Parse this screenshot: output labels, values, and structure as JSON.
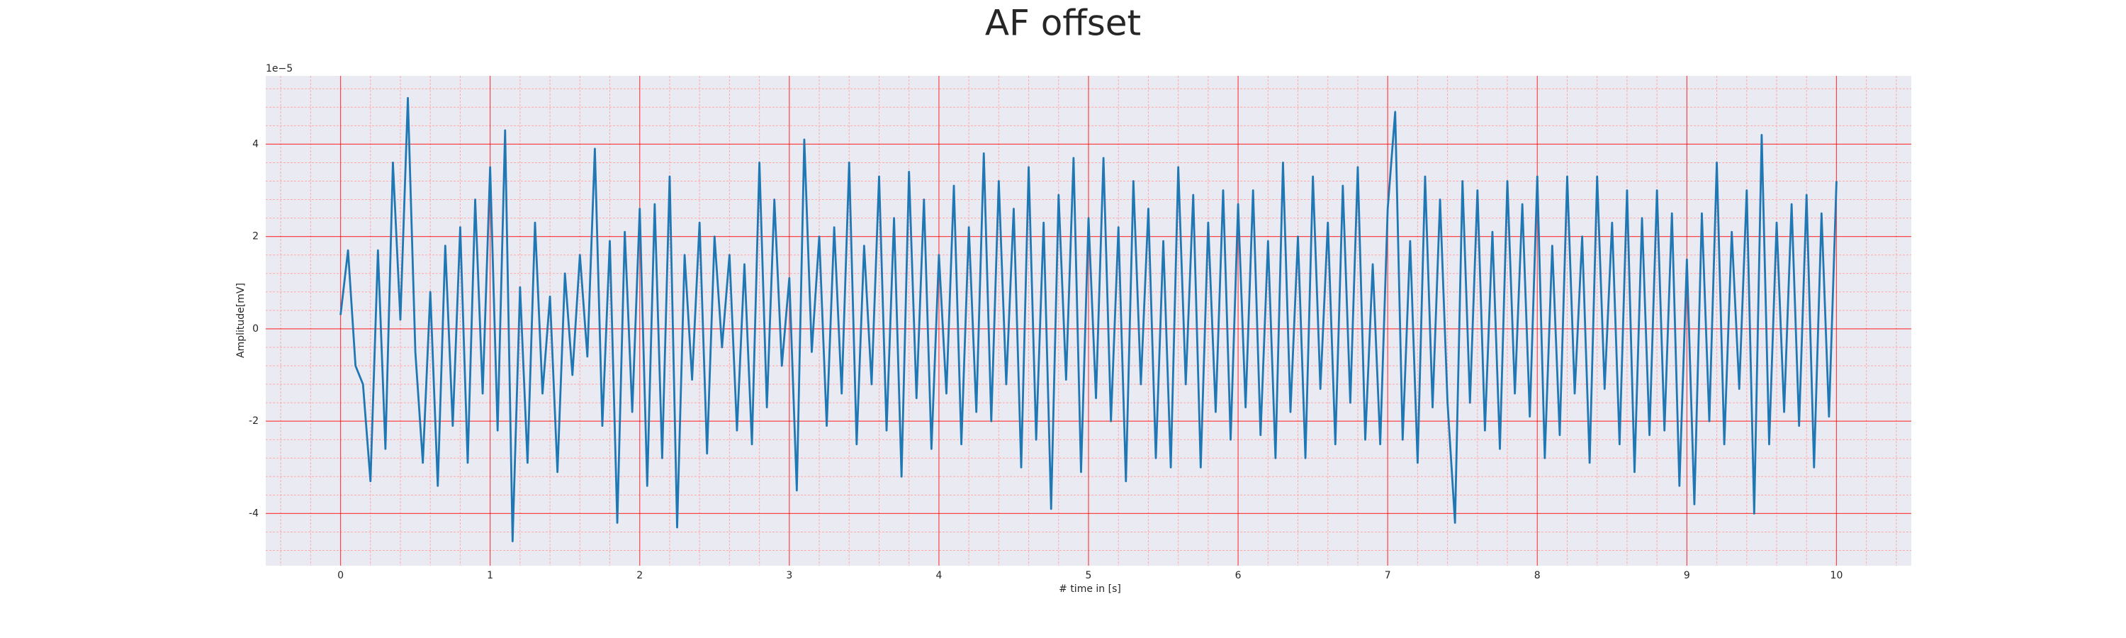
{
  "chart_data": {
    "type": "line",
    "title": "AF offset",
    "xlabel": "# time in [s]",
    "ylabel": "Amplitude[mV]",
    "y_offset_label": "1e−5",
    "xlim": [
      -0.5,
      10.5
    ],
    "ylim": [
      -5.13,
      5.48
    ],
    "xticks": [
      0,
      1,
      2,
      3,
      4,
      5,
      6,
      7,
      8,
      9,
      10
    ],
    "yticks": [
      -4,
      -2,
      0,
      2,
      4
    ],
    "grid": true,
    "grid_color": "#ff0000",
    "minor_grid": true,
    "minor_grid_color": "#ffaaaa",
    "minor_per_major": 5,
    "background": "#eaeaf2",
    "x": [
      0,
      0.05,
      0.1,
      0.15,
      0.2,
      0.25,
      0.3,
      0.35,
      0.4,
      0.45,
      0.5,
      0.55,
      0.6,
      0.65,
      0.7,
      0.75,
      0.8,
      0.85,
      0.9,
      0.95,
      1,
      1.05,
      1.1,
      1.15,
      1.2,
      1.25,
      1.3,
      1.35,
      1.4,
      1.45,
      1.5,
      1.55,
      1.6,
      1.65,
      1.7,
      1.75,
      1.8,
      1.85,
      1.9,
      1.95,
      2,
      2.05,
      2.1,
      2.15,
      2.2,
      2.25,
      2.3,
      2.35,
      2.4,
      2.45,
      2.5,
      2.55,
      2.6,
      2.65,
      2.7,
      2.75,
      2.8,
      2.85,
      2.9,
      2.95,
      3,
      3.05,
      3.1,
      3.15,
      3.2,
      3.25,
      3.3,
      3.35,
      3.4,
      3.45,
      3.5,
      3.55,
      3.6,
      3.65,
      3.7,
      3.75,
      3.8,
      3.85,
      3.9,
      3.95,
      4,
      4.05,
      4.1,
      4.15,
      4.2,
      4.25,
      4.3,
      4.35,
      4.4,
      4.45,
      4.5,
      4.55,
      4.6,
      4.65,
      4.7,
      4.75,
      4.8,
      4.85,
      4.9,
      4.95,
      5,
      5.05,
      5.1,
      5.15,
      5.2,
      5.25,
      5.3,
      5.35,
      5.4,
      5.45,
      5.5,
      5.55,
      5.6,
      5.65,
      5.7,
      5.75,
      5.8,
      5.85,
      5.9,
      5.95,
      6,
      6.05,
      6.1,
      6.15,
      6.2,
      6.25,
      6.3,
      6.35,
      6.4,
      6.45,
      6.5,
      6.55,
      6.6,
      6.65,
      6.7,
      6.75,
      6.8,
      6.85,
      6.9,
      6.95,
      7,
      7.05,
      7.1,
      7.15,
      7.2,
      7.25,
      7.3,
      7.35,
      7.4,
      7.45,
      7.5,
      7.55,
      7.6,
      7.65,
      7.7,
      7.75,
      7.8,
      7.85,
      7.9,
      7.95,
      8,
      8.05,
      8.1,
      8.15,
      8.2,
      8.25,
      8.3,
      8.35,
      8.4,
      8.45,
      8.5,
      8.55,
      8.6,
      8.65,
      8.7,
      8.75,
      8.8,
      8.85,
      8.9,
      8.95,
      9,
      9.05,
      9.1,
      9.15,
      9.2,
      9.25,
      9.3,
      9.35,
      9.4,
      9.45,
      9.5,
      9.55,
      9.6,
      9.65,
      9.7,
      9.75,
      9.8,
      9.85,
      9.9,
      9.95,
      10
    ],
    "series": [
      {
        "color": "#1f77b4",
        "values": [
          0.3,
          1.7,
          -0.8,
          -1.2,
          -3.3,
          1.7,
          -2.6,
          3.6,
          0.2,
          5.0,
          -0.5,
          -2.9,
          0.8,
          -3.4,
          1.8,
          -2.1,
          2.2,
          -2.9,
          2.8,
          -1.4,
          3.5,
          -2.2,
          4.3,
          -4.6,
          0.9,
          -2.9,
          2.3,
          -1.4,
          0.7,
          -3.1,
          1.2,
          -1.0,
          1.6,
          -0.6,
          3.9,
          -2.1,
          1.9,
          -4.2,
          2.1,
          -1.8,
          2.6,
          -3.4,
          2.7,
          -2.8,
          3.3,
          -4.3,
          1.6,
          -1.1,
          2.3,
          -2.7,
          2.0,
          -0.4,
          1.6,
          -2.2,
          1.4,
          -2.5,
          3.6,
          -1.7,
          2.8,
          -0.8,
          1.1,
          -3.5,
          4.1,
          -0.5,
          2.0,
          -2.1,
          2.2,
          -1.4,
          3.6,
          -2.5,
          1.8,
          -1.2,
          3.3,
          -2.2,
          2.4,
          -3.2,
          3.4,
          -1.5,
          2.8,
          -2.6,
          1.6,
          -1.4,
          3.1,
          -2.5,
          2.2,
          -1.8,
          3.8,
          -2.0,
          3.2,
          -1.2,
          2.6,
          -3.0,
          3.5,
          -2.4,
          2.3,
          -3.9,
          2.9,
          -1.1,
          3.7,
          -3.1,
          2.4,
          -1.5,
          3.7,
          -2.0,
          2.2,
          -3.3,
          3.2,
          -1.2,
          2.6,
          -2.8,
          1.9,
          -3.0,
          3.5,
          -1.2,
          2.9,
          -3.0,
          2.3,
          -1.8,
          3.0,
          -2.4,
          2.7,
          -1.7,
          3.0,
          -2.3,
          1.9,
          -2.8,
          3.6,
          -1.8,
          2.0,
          -2.8,
          3.3,
          -1.3,
          2.3,
          -2.5,
          3.1,
          -1.6,
          3.5,
          -2.4,
          1.4,
          -2.5,
          2.6,
          4.7,
          -2.4,
          1.9,
          -2.9,
          3.3,
          -1.7,
          2.8,
          -1.6,
          -4.2,
          3.2,
          -1.6,
          3.0,
          -2.2,
          2.1,
          -2.6,
          3.2,
          -1.4,
          2.7,
          -1.9,
          3.3,
          -2.8,
          1.8,
          -2.3,
          3.3,
          -1.4,
          2.0,
          -2.9,
          3.3,
          -1.3,
          2.3,
          -2.5,
          3.0,
          -3.1,
          2.4,
          -2.3,
          3.0,
          -2.2,
          2.5,
          -3.4,
          1.5,
          -3.8,
          2.5,
          -2.0,
          3.6,
          -2.5,
          2.1,
          -1.3,
          3.0,
          -4.0,
          4.2,
          -2.5,
          2.3,
          -1.8,
          2.7,
          -2.1,
          2.9,
          -3.0,
          2.5,
          -1.9,
          3.2
        ]
      }
    ]
  }
}
